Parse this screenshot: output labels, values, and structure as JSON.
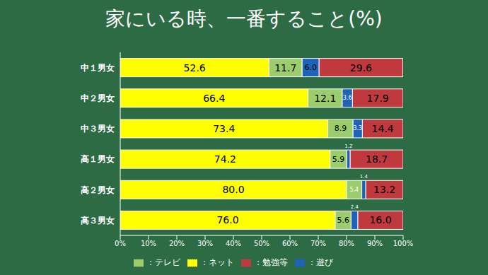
{
  "chart_data": {
    "type": "bar",
    "title": "家にいる時、一番すること(%)",
    "orientation": "horizontal",
    "stacked": true,
    "data_labels": true,
    "grid": false,
    "legend": "bottom",
    "categories": [
      "中１男女",
      "中２男女",
      "中３男女",
      "高１男女",
      "高２男女",
      "高３男女"
    ],
    "xlim": [
      0,
      100
    ],
    "xticks": [
      {
        "value": 0,
        "label": "0%"
      },
      {
        "value": 10,
        "label": "10%"
      },
      {
        "value": 20,
        "label": "20%"
      },
      {
        "value": 30,
        "label": "30%"
      },
      {
        "value": 40,
        "label": "40%"
      },
      {
        "value": 50,
        "label": "50%"
      },
      {
        "value": 60,
        "label": "60%"
      },
      {
        "value": 70,
        "label": "70%"
      },
      {
        "value": 80,
        "label": "80%"
      },
      {
        "value": 90,
        "label": "90%"
      },
      {
        "value": 100,
        "label": "100%"
      }
    ],
    "series": [
      {
        "name": "：ネット",
        "color": "#ffff00",
        "values": [
          52.6,
          66.4,
          73.4,
          74.2,
          80.0,
          76.0
        ],
        "value_labels": [
          "52.6",
          "66.4",
          "73.4",
          "74.2",
          "80.0",
          "76.0"
        ]
      },
      {
        "name": "：テレビ",
        "color": "#9ccc6c",
        "values": [
          11.7,
          12.1,
          8.9,
          5.9,
          5.4,
          5.6
        ],
        "value_labels": [
          "11.7",
          "12.1",
          "8.9",
          "5.9",
          "5.4",
          "5.6"
        ]
      },
      {
        "name": "：遊び",
        "color": "#1f63b8",
        "values": [
          6.0,
          3.6,
          3.3,
          1.2,
          1.4,
          2.4
        ],
        "value_labels": [
          "6.0",
          "3.6",
          "3.3",
          "1.2",
          "1.4",
          "2.4"
        ]
      },
      {
        "name": "：勉強等",
        "color": "#c0393f",
        "values": [
          29.6,
          17.9,
          14.4,
          18.7,
          13.2,
          16.0
        ],
        "value_labels": [
          "29.6",
          "17.9",
          "14.4",
          "18.7",
          "13.2",
          "16.0"
        ]
      }
    ]
  }
}
